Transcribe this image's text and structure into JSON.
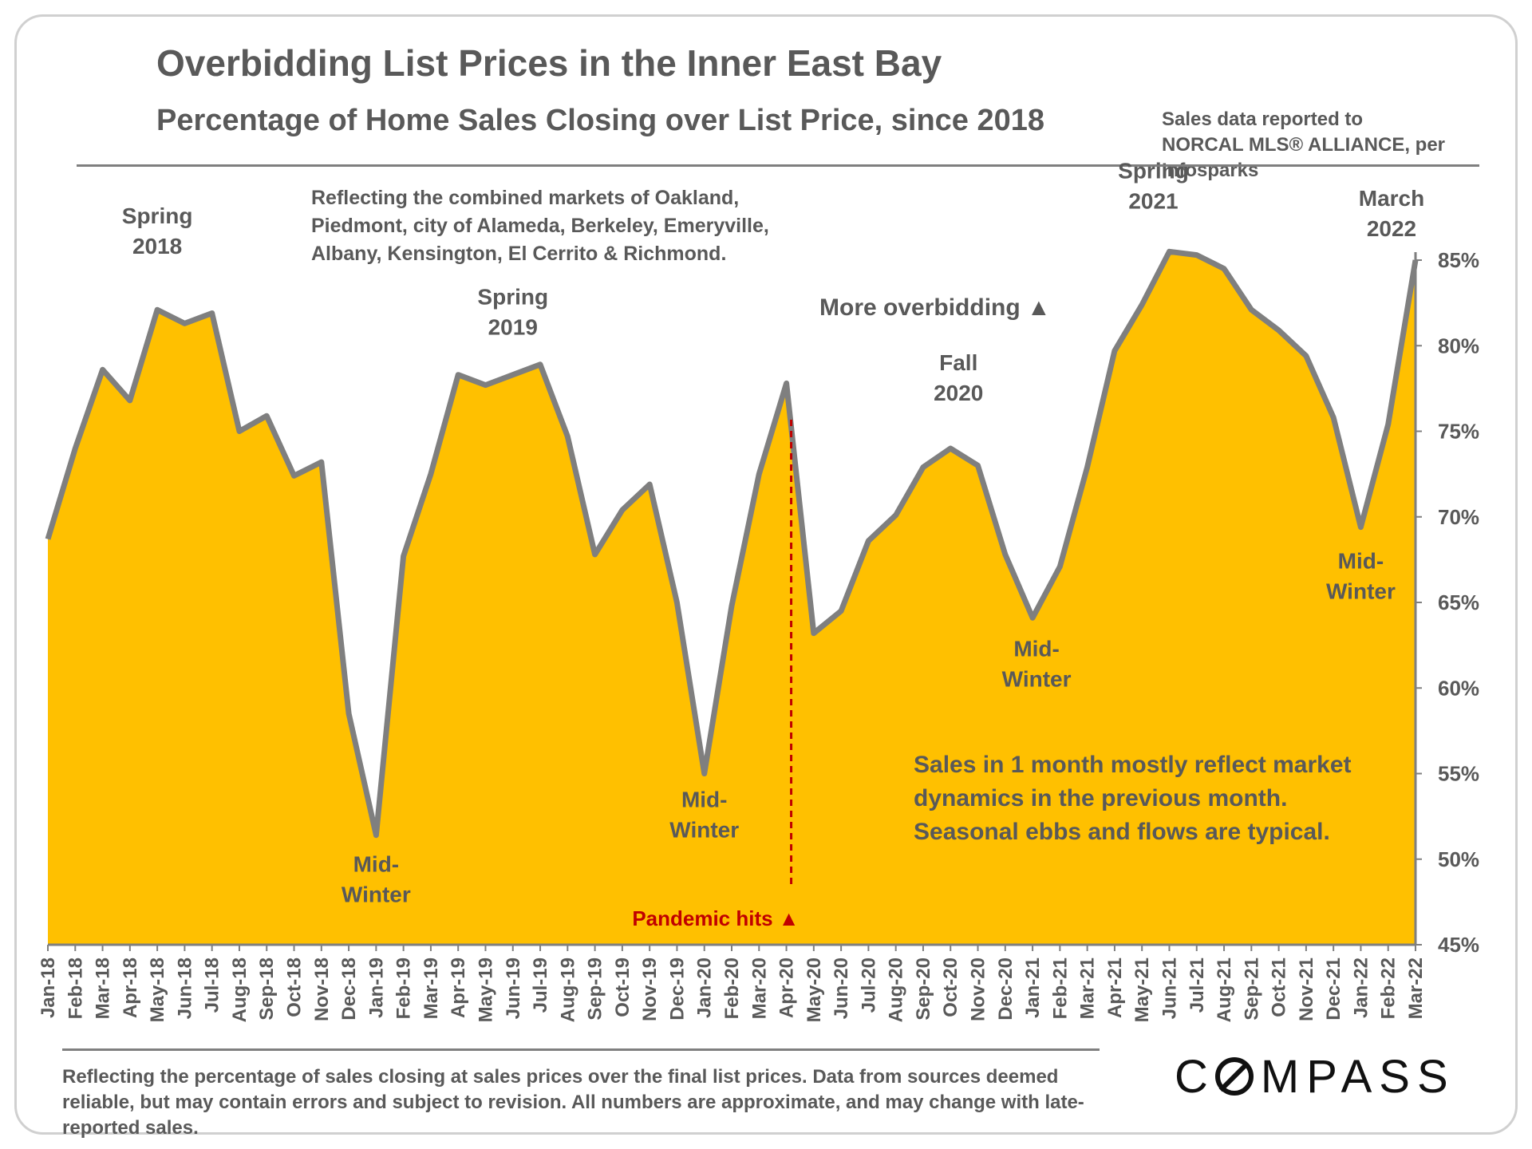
{
  "header": {
    "title": "Overbidding List Prices in the Inner East Bay",
    "subtitle": "Percentage of Home Sales Closing over List Price, since 2018",
    "source": "Sales data reported to NORCAL MLS® ALLIANCE, per Infosparks"
  },
  "footer": {
    "note": "Reflecting the percentage of sales closing at sales prices over the final list prices. Data from sources deemed reliable, but may contain errors and subject to revision. All numbers are approximate, and may change with late-reported sales.",
    "logo": "COMPASS"
  },
  "colors": {
    "area_fill": "#FFC000",
    "line": "#7F7F7F",
    "text": "#595959",
    "pandemic": "#C00000"
  },
  "chart_data": {
    "type": "area",
    "title": "Overbidding List Prices in the Inner East Bay",
    "subtitle": "Percentage of Home Sales Closing over List Price, since 2018",
    "categories": [
      "Jan-18",
      "Feb-18",
      "Mar-18",
      "Apr-18",
      "May-18",
      "Jun-18",
      "Jul-18",
      "Aug-18",
      "Sep-18",
      "Oct-18",
      "Nov-18",
      "Dec-18",
      "Jan-19",
      "Feb-19",
      "Mar-19",
      "Apr-19",
      "May-19",
      "Jun-19",
      "Jul-19",
      "Aug-19",
      "Sep-19",
      "Oct-19",
      "Nov-19",
      "Dec-19",
      "Jan-20",
      "Feb-20",
      "Mar-20",
      "Apr-20",
      "May-20",
      "Jun-20",
      "Jul-20",
      "Aug-20",
      "Sep-20",
      "Oct-20",
      "Nov-20",
      "Dec-20",
      "Jan-21",
      "Feb-21",
      "Mar-21",
      "Apr-21",
      "May-21",
      "Jun-21",
      "Jul-21",
      "Aug-21",
      "Sep-21",
      "Oct-21",
      "Nov-21",
      "Dec-21",
      "Jan-22",
      "Feb-22",
      "Mar-22"
    ],
    "series": [
      {
        "values": [
          68.7,
          74.0,
          78.6,
          76.8,
          82.1,
          81.3,
          81.9,
          75.0,
          75.9,
          72.4,
          73.2,
          58.5,
          51.4,
          67.7,
          72.5,
          78.3,
          77.7,
          78.3,
          78.9,
          74.7,
          67.8,
          70.4,
          71.9,
          65.0,
          55.0,
          64.8,
          72.5,
          77.8,
          63.2,
          64.5,
          68.6,
          70.1,
          72.9,
          74.0,
          73.0,
          67.8,
          64.1,
          67.1,
          72.9,
          79.7,
          82.4,
          85.5,
          85.3,
          84.5,
          82.1,
          80.9,
          79.4,
          75.8,
          69.4,
          75.4,
          85.0
        ]
      }
    ],
    "ylim": [
      45,
      85
    ],
    "yticks": [
      "45%",
      "50%",
      "55%",
      "60%",
      "65%",
      "70%",
      "75%",
      "80%",
      "85%"
    ],
    "y_axis_position": "right",
    "grid": false,
    "annotations": [
      {
        "text": [
          "Spring",
          "2018"
        ],
        "at": "May-18"
      },
      {
        "text": [
          "Spring",
          "2019"
        ],
        "at": "Jun-19"
      },
      {
        "text": [
          "Fall",
          "2020"
        ],
        "at": "Oct-20"
      },
      {
        "text": [
          "Spring",
          "2021"
        ],
        "at": "Jun-21"
      },
      {
        "text": [
          "March",
          "2022"
        ],
        "at": "Mar-22"
      },
      {
        "text": [
          "Mid-",
          "Winter"
        ],
        "at": "Jan-19"
      },
      {
        "text": [
          "Mid-",
          "Winter"
        ],
        "at": "Jan-20"
      },
      {
        "text": [
          "Mid-",
          "Winter"
        ],
        "at": "Jan-21"
      },
      {
        "text": [
          "Mid-",
          "Winter"
        ],
        "at": "Jan-22"
      }
    ],
    "markets_note": [
      "Reflecting the combined markets of Oakland,",
      "Piedmont, city of Alameda, Berkeley, Emeryville,",
      "Albany, Kensington, El Cerrito & Richmond."
    ],
    "overbidding_label": "More overbidding ▲",
    "pandemic_label": "Pandemic hits ▲",
    "pandemic_at": "Apr-20",
    "dynamics_note": [
      "Sales in 1 month mostly reflect market",
      "dynamics in the previous month.",
      "Seasonal ebbs and flows are typical."
    ]
  }
}
